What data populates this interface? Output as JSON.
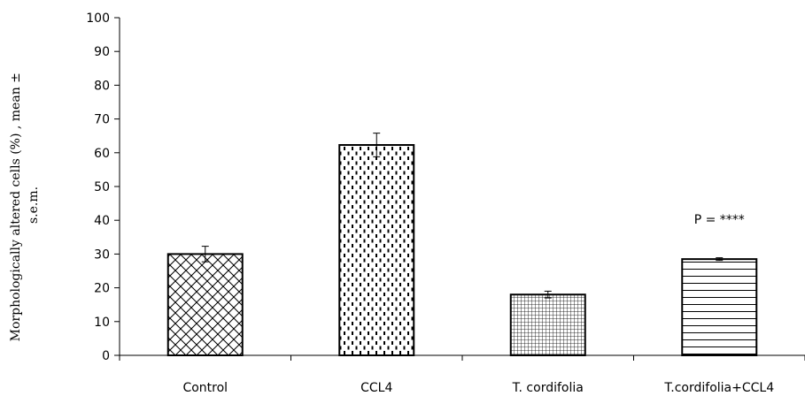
{
  "chart_data": {
    "type": "bar",
    "title": "",
    "xlabel": "",
    "ylabel_lines": [
      "Morphologically altered cells (%) , mean ±",
      "s.e.m."
    ],
    "ylim": [
      0,
      100
    ],
    "yticks": [
      0,
      10,
      20,
      30,
      40,
      50,
      60,
      70,
      80,
      90,
      100
    ],
    "categories": [
      "Control",
      "CCL4",
      "T. cordifolia",
      "T.cordifolia+CCL4"
    ],
    "values": [
      30,
      62.3,
      18,
      28.5
    ],
    "errors": [
      2.3,
      3.5,
      1.0,
      0.4
    ],
    "patterns": [
      "crosshatch",
      "dashes",
      "grid",
      "horizontal-lines"
    ],
    "annotations": [
      {
        "category": "T.cordifolia+CCL4",
        "text": "P = ****"
      }
    ],
    "grid": false,
    "legend": "none"
  }
}
